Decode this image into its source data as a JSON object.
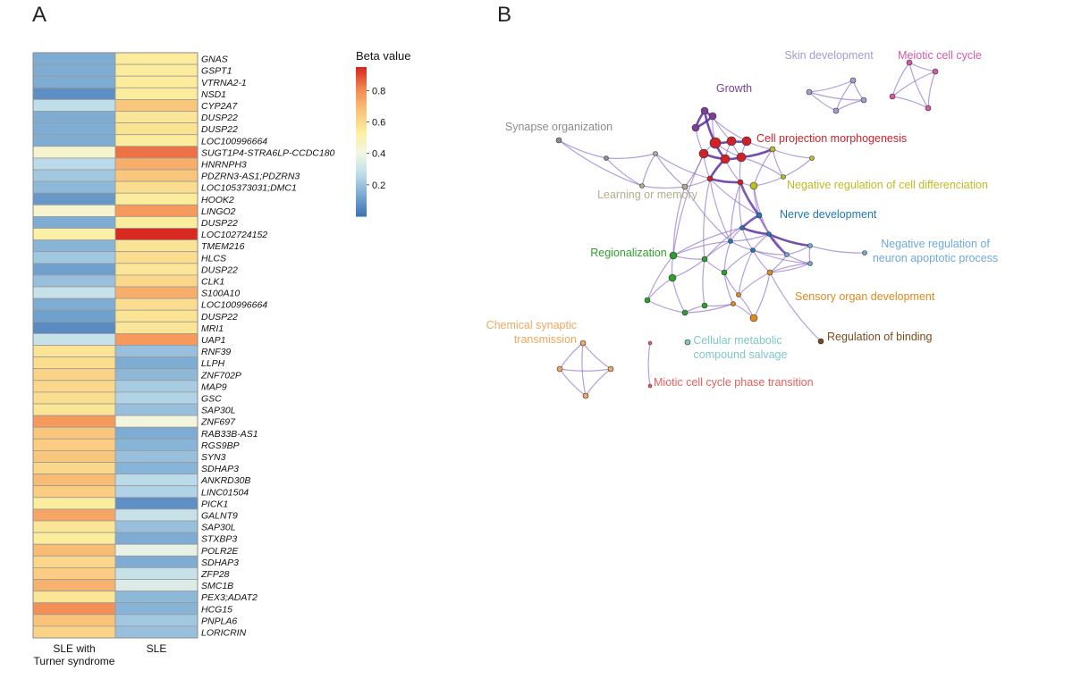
{
  "panels": {
    "a": "A",
    "b": "B"
  },
  "chart_data": [
    {
      "type": "heatmap",
      "columns": [
        "SLE with Turner syndrome",
        "SLE"
      ],
      "column_label_lines": [
        [
          "SLE with",
          "Turner syndrome"
        ],
        [
          "SLE"
        ]
      ],
      "legend": {
        "title": "Beta value",
        "ticks": [
          0.8,
          0.6,
          0.4,
          0.2
        ],
        "range": [
          0,
          0.95
        ],
        "colormap": [
          "#3a6fb4",
          "#77a6d0",
          "#bcdcea",
          "#f2f6e4",
          "#fcef9e",
          "#f9c47a",
          "#f38a52",
          "#d82a22"
        ]
      },
      "rows": [
        {
          "gene": "GNAS",
          "values": [
            0.15,
            0.55
          ]
        },
        {
          "gene": "GSPT1",
          "values": [
            0.15,
            0.55
          ]
        },
        {
          "gene": "VTRNA2-1",
          "values": [
            0.15,
            0.55
          ]
        },
        {
          "gene": "NSD1",
          "values": [
            0.08,
            0.55
          ]
        },
        {
          "gene": "CYP2A7",
          "values": [
            0.28,
            0.67
          ]
        },
        {
          "gene": "DUSP22",
          "values": [
            0.15,
            0.57
          ]
        },
        {
          "gene": "DUSP22",
          "values": [
            0.15,
            0.58
          ]
        },
        {
          "gene": "LOC100996664",
          "values": [
            0.15,
            0.55
          ]
        },
        {
          "gene": "SUGT1P4-STRA6LP-CCDC180",
          "values": [
            0.45,
            0.85
          ]
        },
        {
          "gene": "HNRNPH3",
          "values": [
            0.27,
            0.73
          ]
        },
        {
          "gene": "PDZRN3-AS1;PDZRN3",
          "values": [
            0.22,
            0.67
          ]
        },
        {
          "gene": "LOC105373031;DMC1",
          "values": [
            0.18,
            0.6
          ]
        },
        {
          "gene": "HOOK2",
          "values": [
            0.1,
            0.55
          ]
        },
        {
          "gene": "LINGO2",
          "values": [
            0.45,
            0.78
          ]
        },
        {
          "gene": "DUSP22",
          "values": [
            0.15,
            0.55
          ]
        },
        {
          "gene": "LOC102724152",
          "values": [
            0.53,
            0.95
          ]
        },
        {
          "gene": "TMEM216",
          "values": [
            0.17,
            0.58
          ]
        },
        {
          "gene": "HLCS",
          "values": [
            0.22,
            0.6
          ]
        },
        {
          "gene": "DUSP22",
          "values": [
            0.12,
            0.57
          ]
        },
        {
          "gene": "CLK1",
          "values": [
            0.2,
            0.62
          ]
        },
        {
          "gene": "S100A10",
          "values": [
            0.3,
            0.73
          ]
        },
        {
          "gene": "LOC100996664",
          "values": [
            0.15,
            0.6
          ]
        },
        {
          "gene": "DUSP22",
          "values": [
            0.12,
            0.58
          ]
        },
        {
          "gene": "MRI1",
          "values": [
            0.07,
            0.57
          ]
        },
        {
          "gene": "UAP1",
          "values": [
            0.3,
            0.78
          ]
        },
        {
          "gene": "RNF39",
          "values": [
            0.58,
            0.2
          ]
        },
        {
          "gene": "LLPH",
          "values": [
            0.6,
            0.15
          ]
        },
        {
          "gene": "ZNF702P",
          "values": [
            0.63,
            0.18
          ]
        },
        {
          "gene": "MAP9",
          "values": [
            0.62,
            0.23
          ]
        },
        {
          "gene": "GSC",
          "values": [
            0.6,
            0.25
          ]
        },
        {
          "gene": "SAP30L",
          "values": [
            0.57,
            0.2
          ]
        },
        {
          "gene": "ZNF697",
          "values": [
            0.78,
            0.42
          ]
        },
        {
          "gene": "RAB33B-AS1",
          "values": [
            0.67,
            0.15
          ]
        },
        {
          "gene": "RGS9BP",
          "values": [
            0.65,
            0.17
          ]
        },
        {
          "gene": "SYN3",
          "values": [
            0.67,
            0.2
          ]
        },
        {
          "gene": "SDHAP3",
          "values": [
            0.62,
            0.17
          ]
        },
        {
          "gene": "ANKRD30B",
          "values": [
            0.7,
            0.27
          ]
        },
        {
          "gene": "LINC01504",
          "values": [
            0.65,
            0.25
          ]
        },
        {
          "gene": "PICK1",
          "values": [
            0.55,
            0.08
          ]
        },
        {
          "gene": "GALNT9",
          "values": [
            0.75,
            0.3
          ]
        },
        {
          "gene": "SAP30L",
          "values": [
            0.57,
            0.2
          ]
        },
        {
          "gene": "STXBP3",
          "values": [
            0.55,
            0.15
          ]
        },
        {
          "gene": "POLR2E",
          "values": [
            0.7,
            0.38
          ]
        },
        {
          "gene": "SDHAP3",
          "values": [
            0.62,
            0.15
          ]
        },
        {
          "gene": "ZFP28",
          "values": [
            0.65,
            0.3
          ]
        },
        {
          "gene": "SMC1B",
          "values": [
            0.72,
            0.35
          ]
        },
        {
          "gene": "PEX3;ADAT2",
          "values": [
            0.57,
            0.18
          ]
        },
        {
          "gene": "HCG15",
          "values": [
            0.8,
            0.17
          ]
        },
        {
          "gene": "PNPLA6",
          "values": [
            0.68,
            0.22
          ]
        },
        {
          "gene": "LORICRIN",
          "values": [
            0.63,
            0.2
          ]
        }
      ]
    },
    {
      "type": "network",
      "clusters": [
        {
          "label": "Skin development",
          "color": "#a59cce"
        },
        {
          "label": "Meiotic cell cycle",
          "color": "#d65aa8"
        },
        {
          "label": "Growth",
          "color": "#7b3f98"
        },
        {
          "label": "Synapse organization",
          "color": "#8c8c8c"
        },
        {
          "label": "Cell projection morphogenesis",
          "color": "#d0202a"
        },
        {
          "label": "Learning or memory",
          "color": "#b3ad8c"
        },
        {
          "label": "Negative regulation of cell differenciation",
          "color": "#bcbd22"
        },
        {
          "label": "Nerve development",
          "color": "#1f77b4"
        },
        {
          "label": "Regionalization",
          "color": "#2ca02c"
        },
        {
          "label": "Negative regulation of neuron apoptotic process",
          "color": "#6fa8dc"
        },
        {
          "label": "Sensory organ development",
          "color": "#e08a1e"
        },
        {
          "label": "Chemical synaptic transmission",
          "color": "#f0a860"
        },
        {
          "label": "Cellular metabolic compound salvage",
          "color": "#7ec8c8"
        },
        {
          "label": "Regulation of binding",
          "color": "#7a4a1e"
        },
        {
          "label": "Miotic cell cycle phase transition",
          "color": "#e8605a"
        }
      ]
    }
  ]
}
